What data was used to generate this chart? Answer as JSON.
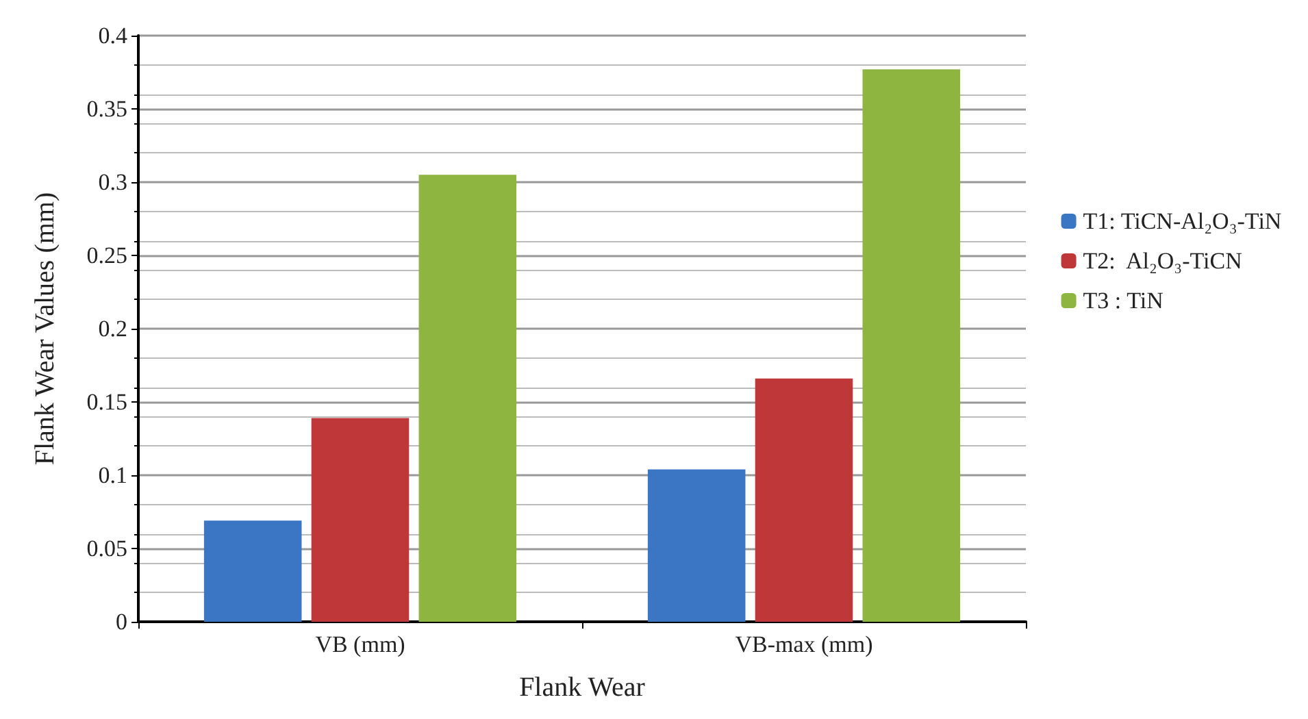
{
  "chart_data": {
    "type": "bar",
    "xlabel": "Flank Wear",
    "ylabel": "Flank Wear Values (mm)",
    "categories": [
      "VB (mm)",
      "VB-max (mm)"
    ],
    "series": [
      {
        "name": "T1: TiCN-Al₂O₃-TiN",
        "color": "#3a76c4",
        "values": [
          0.069,
          0.104
        ]
      },
      {
        "name": "T2:  Al₂O₃-TiCN",
        "color": "#c0373a",
        "values": [
          0.139,
          0.166
        ]
      },
      {
        "name": "T3 : TiN",
        "color": "#8db53f",
        "values": [
          0.305,
          0.377
        ]
      }
    ],
    "ylim": [
      0,
      0.4
    ],
    "yticks": [
      0,
      0.05,
      0.1,
      0.15,
      0.2,
      0.25,
      0.3,
      0.35,
      0.4
    ],
    "grid": "y",
    "legend": "right"
  }
}
